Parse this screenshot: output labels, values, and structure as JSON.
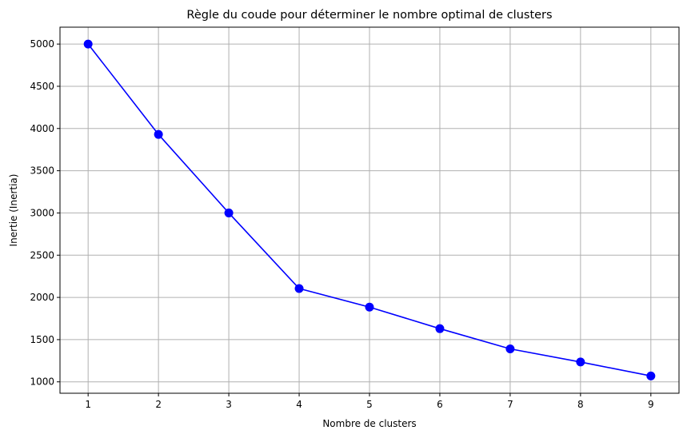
{
  "chart_data": {
    "type": "line",
    "title": "Règle du coude pour déterminer le nombre optimal de clusters",
    "xlabel": "Nombre de clusters",
    "ylabel": "Inertie (Inertia)",
    "x": [
      1,
      2,
      3,
      4,
      5,
      6,
      7,
      8,
      9
    ],
    "series": [
      {
        "values": [
          5000,
          3930,
          3000,
          2105,
          1885,
          1630,
          1390,
          1235,
          1070
        ]
      }
    ],
    "xticks": [
      "1",
      "2",
      "3",
      "4",
      "5",
      "6",
      "7",
      "8",
      "9"
    ],
    "yticks": [
      "1000",
      "1500",
      "2000",
      "2500",
      "3000",
      "3500",
      "4000",
      "4500",
      "5000"
    ],
    "xlim": [
      0.6,
      9.4
    ],
    "ylim": [
      865,
      5200
    ],
    "grid": true,
    "marker": "circle",
    "line_color": "#0000ff",
    "grid_color": "#b0b0b0"
  }
}
